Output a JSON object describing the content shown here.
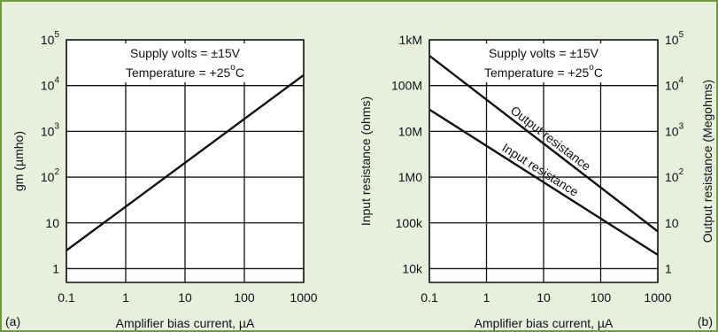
{
  "chart_data": [
    {
      "type": "line",
      "panel_label": "(a)",
      "xlabel": "Amplifier bias current, µA",
      "ylabel": "gm (µmho)",
      "x_scale": "log",
      "y_scale": "log",
      "xlim": [
        0.1,
        1000
      ],
      "ylim": [
        0.5,
        100000
      ],
      "grid": true,
      "x_ticks": [
        "0.1",
        "1",
        "10",
        "100",
        "1000"
      ],
      "y_ticks": [
        {
          "value": 1,
          "base": "1",
          "exp": ""
        },
        {
          "value": 10,
          "base": "10",
          "exp": ""
        },
        {
          "value": 100,
          "base": "10",
          "exp": "2"
        },
        {
          "value": 1000,
          "base": "10",
          "exp": "3"
        },
        {
          "value": 10000,
          "base": "10",
          "exp": "4"
        },
        {
          "value": 100000,
          "base": "10",
          "exp": "5"
        }
      ],
      "annotations": {
        "supply": "Supply volts = ±15V",
        "temperature": "Temperature = +25",
        "degree": "o",
        "temperature_unit": "C"
      },
      "series": [
        {
          "x": [
            0.1,
            1000
          ],
          "y": [
            2.5,
            17000
          ]
        }
      ]
    },
    {
      "type": "line",
      "panel_label": "(b)",
      "xlabel": "Amplifier bias current, µA",
      "ylabel": "Input resistance (ohms)",
      "y2label": "Output resistance (Megohms)",
      "x_scale": "log",
      "y_scale": "log",
      "xlim": [
        0.1,
        1000
      ],
      "ylim": [
        5000,
        1000000000
      ],
      "grid": true,
      "x_ticks": [
        "0.1",
        "1",
        "10",
        "100",
        "1000"
      ],
      "y_ticks": [
        {
          "value": 10000,
          "label": "10k"
        },
        {
          "value": 100000,
          "label": "100k"
        },
        {
          "value": 1000000,
          "label": "1M0"
        },
        {
          "value": 10000000,
          "label": "10M"
        },
        {
          "value": 100000000,
          "label": "100M"
        },
        {
          "value": 1000000000,
          "label": "1kM"
        }
      ],
      "y2_ticks": [
        {
          "value": 10000,
          "base": "1",
          "exp": ""
        },
        {
          "value": 100000,
          "base": "10",
          "exp": ""
        },
        {
          "value": 1000000,
          "base": "10",
          "exp": "2"
        },
        {
          "value": 10000000,
          "base": "10",
          "exp": "3"
        },
        {
          "value": 100000000,
          "base": "10",
          "exp": "4"
        },
        {
          "value": 1000000000,
          "base": "10",
          "exp": "5"
        }
      ],
      "annotations": {
        "supply": "Supply volts = ±15V",
        "temperature": "Temperature = +25",
        "degree": "o",
        "temperature_unit": "C"
      },
      "series": [
        {
          "name": "Output resistance",
          "x": [
            0.1,
            1000
          ],
          "y": [
            450000000,
            65000
          ]
        },
        {
          "name": "Input resistance",
          "x": [
            0.1,
            1000
          ],
          "y": [
            30000000,
            20000
          ]
        }
      ]
    }
  ]
}
